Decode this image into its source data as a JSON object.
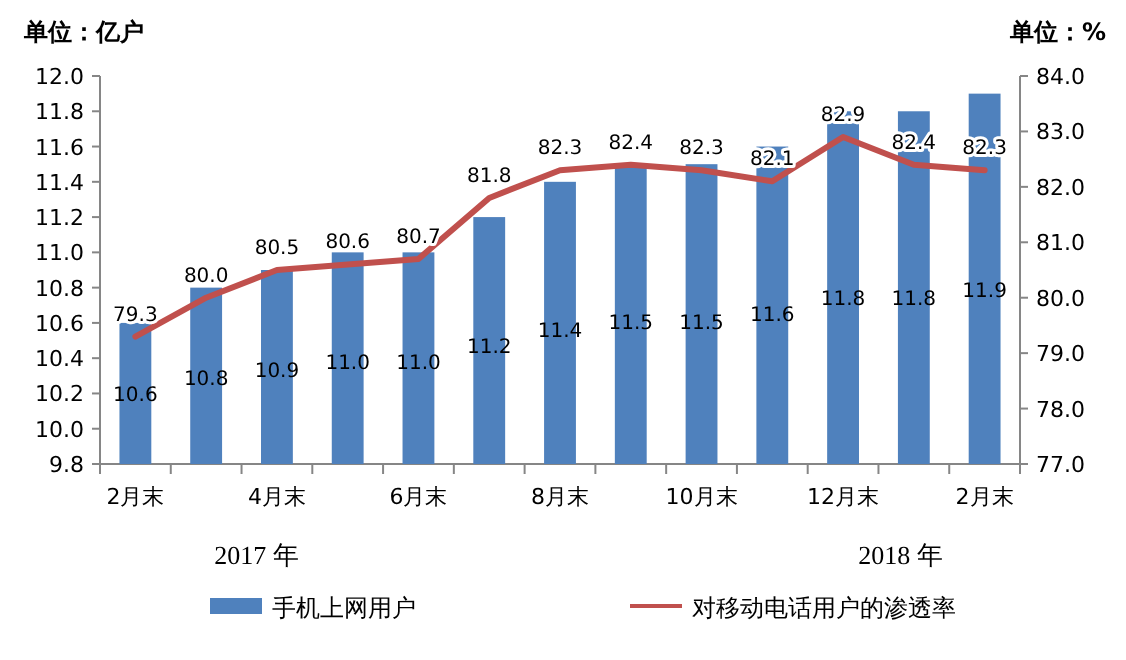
{
  "chart_data": {
    "type": "bar",
    "categories": [
      "2月末",
      null,
      "4月末",
      null,
      "6月末",
      null,
      "8月末",
      null,
      "10月末",
      null,
      "12月末",
      null,
      "2月末"
    ],
    "series": [
      {
        "name": "手机上网用户",
        "type": "bar",
        "color": "#4f81bd",
        "values": [
          10.6,
          10.8,
          10.9,
          11.0,
          11.0,
          11.2,
          11.4,
          11.5,
          11.5,
          11.6,
          11.8,
          11.8,
          11.9
        ],
        "value_labels": [
          "10.6",
          "10.8",
          "10.9",
          "11.0",
          "11.0",
          "11.2",
          "11.4",
          "11.5",
          "11.5",
          "11.6",
          "11.8",
          "11.8",
          "11.9"
        ]
      },
      {
        "name": "对移动电话用户的渗透率",
        "type": "line",
        "axis": "y2",
        "color": "#c0504d",
        "values": [
          79.3,
          80.0,
          80.5,
          80.6,
          80.7,
          81.8,
          82.3,
          82.4,
          82.3,
          82.1,
          82.9,
          82.4,
          82.3
        ],
        "value_labels": [
          "79.3",
          "80.0",
          "80.5",
          "80.6",
          "80.7",
          "81.8",
          "82.3",
          "82.4",
          "82.3",
          "82.1",
          "82.9",
          "82.4",
          "82.3"
        ]
      }
    ],
    "ylabel": "单位：亿户",
    "y2label": "单位：%",
    "ylim": [
      9.8,
      12.0
    ],
    "yticks": [
      {
        "value": 9.8,
        "label": "9.8"
      },
      {
        "value": 10.0,
        "label": "10.0"
      },
      {
        "value": 10.2,
        "label": "10.2"
      },
      {
        "value": 10.4,
        "label": "10.4"
      },
      {
        "value": 10.6,
        "label": "10.6"
      },
      {
        "value": 10.8,
        "label": "10.8"
      },
      {
        "value": 11.0,
        "label": "11.0"
      },
      {
        "value": 11.2,
        "label": "11.2"
      },
      {
        "value": 11.4,
        "label": "11.4"
      },
      {
        "value": 11.6,
        "label": "11.6"
      },
      {
        "value": 11.8,
        "label": "11.8"
      },
      {
        "value": 12.0,
        "label": "12.0"
      }
    ],
    "y2lim": [
      77,
      84
    ],
    "y2ticks": [
      {
        "value": 77,
        "label": "77.0"
      },
      {
        "value": 78,
        "label": "78.0"
      },
      {
        "value": 79,
        "label": "79.0"
      },
      {
        "value": 80,
        "label": "80.0"
      },
      {
        "value": 81,
        "label": "81.0"
      },
      {
        "value": 82,
        "label": "82.0"
      },
      {
        "value": 83,
        "label": "83.0"
      },
      {
        "value": 84,
        "label": "84.0"
      }
    ],
    "annotations": [
      "2017 年",
      "2018 年"
    ],
    "grid": false,
    "legend": "bottom"
  }
}
